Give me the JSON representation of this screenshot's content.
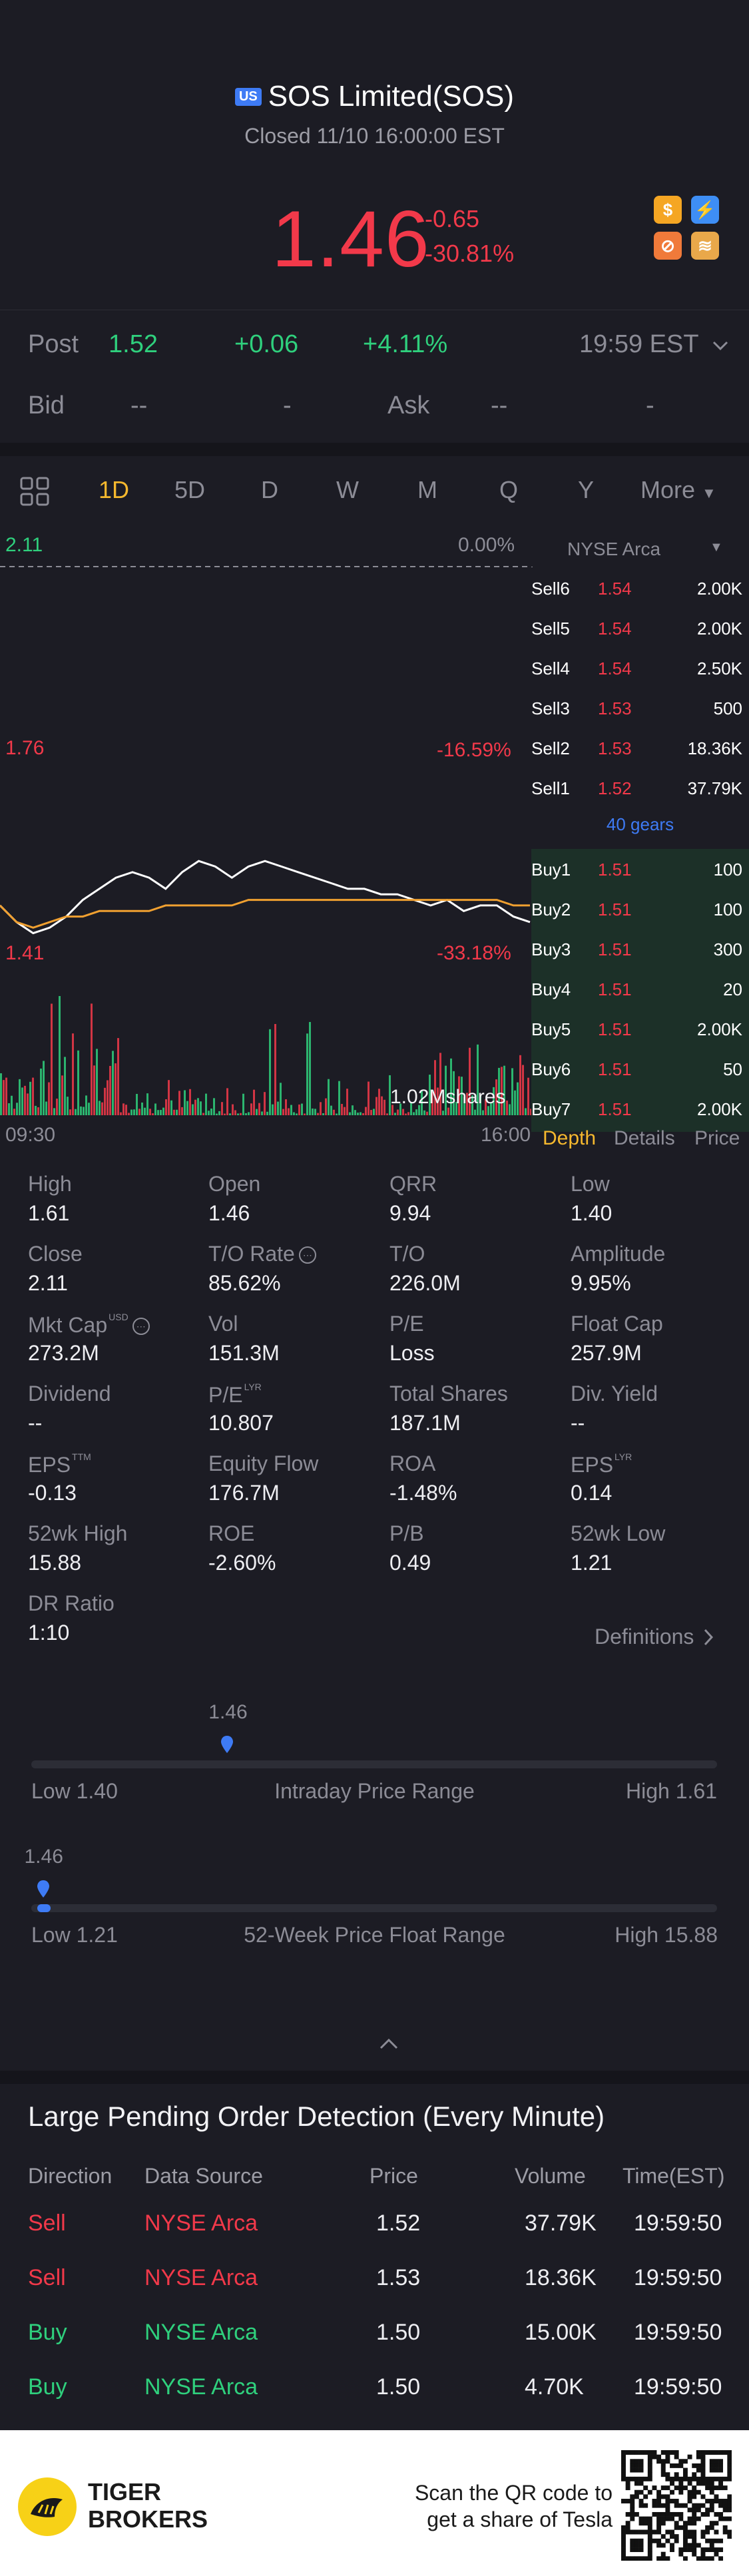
{
  "header": {
    "market_badge": "US",
    "title": "SOS Limited(SOS)",
    "status": "Closed 11/10 16:00:00 EST"
  },
  "quote": {
    "price": "1.46",
    "change": "-0.65",
    "change_pct": "-30.81%"
  },
  "top_icons": [
    "dollar-icon",
    "flash-icon",
    "no-shorting-icon",
    "layers-icon"
  ],
  "post": {
    "label": "Post",
    "price": "1.52",
    "change": "+0.06",
    "change_pct": "+4.11%",
    "time": "19:59 EST"
  },
  "bid_ask": {
    "bid_label": "Bid",
    "bid_val": "--",
    "bid_size": "-",
    "ask_label": "Ask",
    "ask_val": "--",
    "ask_size": "-"
  },
  "tabs": [
    "1D",
    "5D",
    "D",
    "W",
    "M",
    "Q",
    "Y",
    "More"
  ],
  "active_tab": "1D",
  "chart": {
    "top_price": "2.11",
    "top_pct": "0.00%",
    "mid_price": "1.76",
    "mid_pct": "-16.59%",
    "low_price": "1.41",
    "low_pct": "-33.18%",
    "volume_label": "1.02Mshares",
    "time_start": "09:30",
    "time_end": "16:00"
  },
  "chart_data": {
    "type": "line",
    "title": "",
    "xlabel": "",
    "ylabel": "",
    "x_range": [
      "09:30",
      "16:00"
    ],
    "ylim": [
      1.41,
      2.11
    ],
    "series": [
      {
        "values": [
          1.5,
          1.47,
          1.45,
          1.46,
          1.48,
          1.51,
          1.53,
          1.55,
          1.56,
          1.55,
          1.53,
          1.56,
          1.58,
          1.57,
          1.55,
          1.57,
          1.58,
          1.57,
          1.56,
          1.55,
          1.54,
          1.53,
          1.53,
          1.52,
          1.52,
          1.51,
          1.5,
          1.51,
          1.49,
          1.5,
          1.5,
          1.48,
          1.47
        ]
      },
      {
        "values": [
          1.5,
          1.47,
          1.46,
          1.47,
          1.48,
          1.48,
          1.49,
          1.49,
          1.49,
          1.49,
          1.5,
          1.5,
          1.5,
          1.5,
          1.5,
          1.51,
          1.51,
          1.51,
          1.51,
          1.51,
          1.51,
          1.51,
          1.51,
          1.51,
          1.51,
          1.51,
          1.51,
          1.51,
          1.51,
          1.51,
          1.51,
          1.5,
          1.5
        ]
      }
    ]
  },
  "order_book": {
    "exchange": "NYSE Arca",
    "gears": "40 gears",
    "sells": [
      {
        "label": "Sell6",
        "price": "1.54",
        "size": "2.00K"
      },
      {
        "label": "Sell5",
        "price": "1.54",
        "size": "2.00K"
      },
      {
        "label": "Sell4",
        "price": "1.54",
        "size": "2.50K"
      },
      {
        "label": "Sell3",
        "price": "1.53",
        "size": "500"
      },
      {
        "label": "Sell2",
        "price": "1.53",
        "size": "18.36K"
      },
      {
        "label": "Sell1",
        "price": "1.52",
        "size": "37.79K"
      }
    ],
    "buys": [
      {
        "label": "Buy1",
        "price": "1.51",
        "size": "100"
      },
      {
        "label": "Buy2",
        "price": "1.51",
        "size": "100"
      },
      {
        "label": "Buy3",
        "price": "1.51",
        "size": "300"
      },
      {
        "label": "Buy4",
        "price": "1.51",
        "size": "20"
      },
      {
        "label": "Buy5",
        "price": "1.51",
        "size": "2.00K"
      },
      {
        "label": "Buy6",
        "price": "1.51",
        "size": "50"
      },
      {
        "label": "Buy7",
        "price": "1.51",
        "size": "2.00K"
      }
    ],
    "tabs": [
      "Depth",
      "Details",
      "Price"
    ]
  },
  "stats": [
    [
      {
        "label": "High",
        "value": "1.61"
      },
      {
        "label": "Open",
        "value": "1.46"
      },
      {
        "label": "QRR",
        "value": "9.94"
      },
      {
        "label": "Low",
        "value": "1.40"
      }
    ],
    [
      {
        "label": "Close",
        "value": "2.11"
      },
      {
        "label": "T/O Rate",
        "value": "85.62%"
      },
      {
        "label": "T/O",
        "value": "226.0M"
      },
      {
        "label": "Amplitude",
        "value": "9.95%"
      }
    ],
    [
      {
        "label": "Mkt Cap",
        "value": "273.2M",
        "sup": "USD"
      },
      {
        "label": "Vol",
        "value": "151.3M"
      },
      {
        "label": "P/E",
        "value": "Loss"
      },
      {
        "label": "Float Cap",
        "value": "257.9M"
      }
    ],
    [
      {
        "label": "Dividend",
        "value": "--"
      },
      {
        "label": "P/E",
        "value": "10.807",
        "sup": "LYR"
      },
      {
        "label": "Total Shares",
        "value": "187.1M"
      },
      {
        "label": "Div. Yield",
        "value": "--"
      }
    ],
    [
      {
        "label": "EPS",
        "value": "-0.13",
        "sup": "TTM"
      },
      {
        "label": "Equity Flow",
        "value": "176.7M"
      },
      {
        "label": "ROA",
        "value": "-1.48%"
      },
      {
        "label": "EPS",
        "value": "0.14",
        "sup": "LYR"
      }
    ],
    [
      {
        "label": "52wk High",
        "value": "15.88"
      },
      {
        "label": "ROE",
        "value": "-2.60%"
      },
      {
        "label": "P/B",
        "value": "0.49"
      },
      {
        "label": "52wk Low",
        "value": "1.21"
      }
    ],
    [
      {
        "label": "DR Ratio",
        "value": "1:10"
      }
    ]
  ],
  "definitions_label": "Definitions",
  "intraday_range": {
    "current": "1.46",
    "low": "Low 1.40",
    "high": "High 1.61",
    "label": "Intraday Price Range",
    "position": 0.2857
  },
  "week52_range": {
    "current": "1.46",
    "low": "Low 1.21",
    "high": "High 15.88",
    "label": "52-Week Price Float Range",
    "position": 0.017
  },
  "pending": {
    "title": "Large Pending Order Detection (Every Minute)",
    "headers": [
      "Direction",
      "Data Source",
      "Price",
      "Volume",
      "Time(EST)"
    ],
    "rows": [
      [
        "Sell",
        "NYSE Arca",
        "1.52",
        "37.79K",
        "19:59:50"
      ],
      [
        "Sell",
        "NYSE Arca",
        "1.53",
        "18.36K",
        "19:59:50"
      ],
      [
        "Buy",
        "NYSE Arca",
        "1.50",
        "15.00K",
        "19:59:50"
      ],
      [
        "Buy",
        "NYSE Arca",
        "1.50",
        "4.70K",
        "19:59:50"
      ]
    ]
  },
  "footer": {
    "brand_line1": "TIGER",
    "brand_line2": "BROKERS",
    "cta_line1": "Scan the QR code to",
    "cta_line2": "get a share of Tesla"
  },
  "colors": {
    "background": "#1c1c24",
    "down": "#f2394a",
    "up": "#2fd07d",
    "accent": "#f5b82e",
    "link": "#3e7bf5"
  }
}
